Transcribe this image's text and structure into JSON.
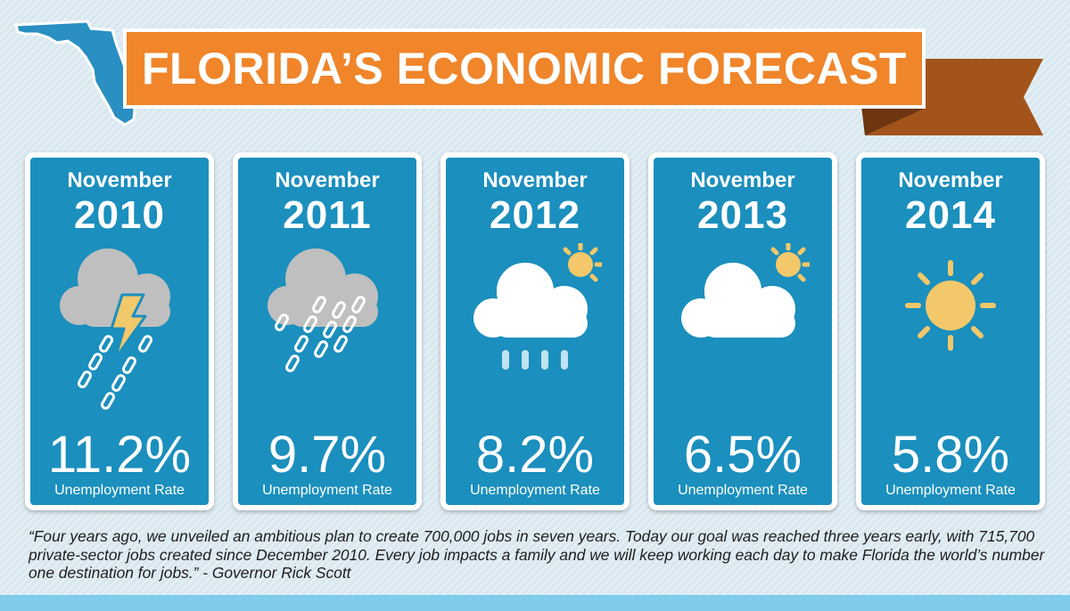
{
  "header": {
    "title": "FLORIDA’S ECONOMIC FORECAST"
  },
  "colors": {
    "ribbon": "#f0852a",
    "ribbon_tail": "#a2541a",
    "card": "#1b8fbd",
    "map": "#2a8fc2",
    "sun": "#f2c86a",
    "cloud_gray": "#bfbfbf",
    "rain": "#bfe4f2"
  },
  "cards": [
    {
      "month": "November",
      "year": "2010",
      "rate": "11.2%",
      "label": "Unemployment Rate",
      "icon": "storm-cloud-icon"
    },
    {
      "month": "November",
      "year": "2011",
      "rate": "9.7%",
      "label": "Unemployment Rate",
      "icon": "rain-cloud-icon"
    },
    {
      "month": "November",
      "year": "2012",
      "rate": "8.2%",
      "label": "Unemployment Rate",
      "icon": "sun-cloud-rain-icon"
    },
    {
      "month": "November",
      "year": "2013",
      "rate": "6.5%",
      "label": "Unemployment Rate",
      "icon": "partly-cloudy-icon"
    },
    {
      "month": "November",
      "year": "2014",
      "rate": "5.8%",
      "label": "Unemployment Rate",
      "icon": "sun-icon"
    }
  ],
  "quote": {
    "text": "“Four years ago, we unveiled an ambitious plan to create 700,000 jobs in seven years. Today our goal was reached three years early, with 715,700 private-sector jobs created since December 2010. Every job impacts a family and we will keep working each day to make Florida the world’s number one destination for jobs.” - Governor Rick Scott"
  }
}
